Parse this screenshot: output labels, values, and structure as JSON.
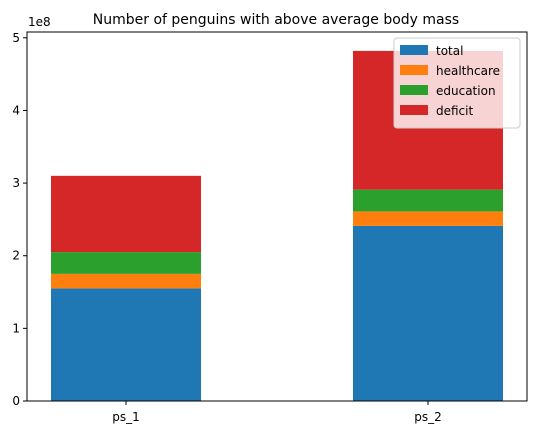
{
  "chart_data": {
    "type": "bar",
    "stacked": true,
    "title": "Number of penguins with above average body mass",
    "xlabel": "",
    "ylabel": "",
    "categories": [
      "ps_1",
      "ps_2"
    ],
    "series": [
      {
        "name": "total",
        "values": [
          1.55,
          2.41
        ],
        "color": "#1f77b4"
      },
      {
        "name": "healthcare",
        "values": [
          0.2,
          0.2
        ],
        "color": "#ff7f0e"
      },
      {
        "name": "education",
        "values": [
          0.3,
          0.3
        ],
        "color": "#2ca02c"
      },
      {
        "name": "deficit",
        "values": [
          1.05,
          1.91
        ],
        "color": "#d62728"
      }
    ],
    "ylim": [
      0,
      5.08
    ],
    "yticks": [
      0,
      1,
      2,
      3,
      4,
      5
    ],
    "ytick_labels": [
      "0",
      "1",
      "2",
      "3",
      "4",
      "5"
    ],
    "y_offset_label": "1e8",
    "grid": false,
    "legend_placement": "top-right"
  }
}
